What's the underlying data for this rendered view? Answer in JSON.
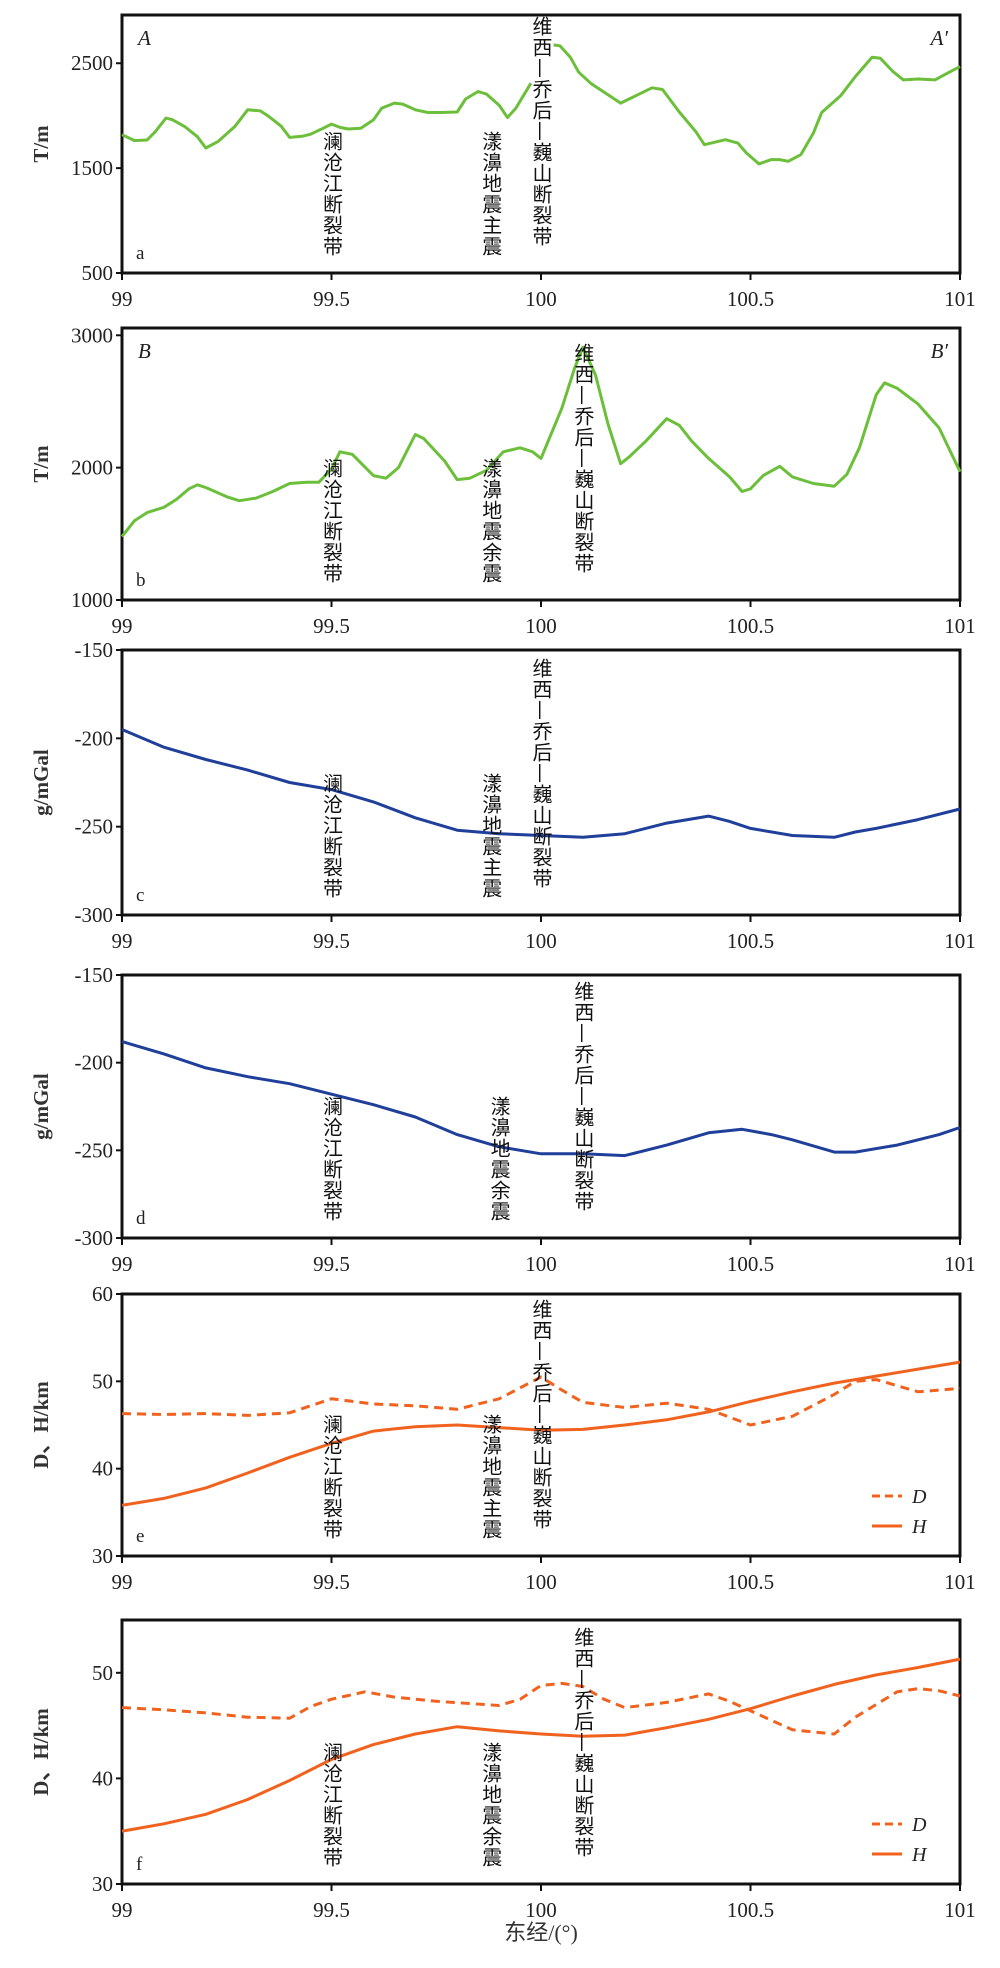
{
  "colors": {
    "T": "#6cbf3a",
    "g": "#1f3f9a",
    "DH": "#f0621e",
    "axis": "#111111"
  },
  "xlabel": "东经/(°)",
  "chart_data": [
    {
      "type": "line",
      "panel": "a",
      "ylabel": "T/m",
      "corner_left": "A",
      "corner_right": "A′",
      "xlim": [
        99,
        101
      ],
      "ylim": [
        500,
        2960
      ],
      "xticks": [
        "99",
        "99.5",
        "100",
        "100.5",
        "101"
      ],
      "yticks": [
        "500",
        "1500",
        "2500"
      ],
      "annotations": [
        {
          "x": 99.5,
          "text": "澜沧江断裂带"
        },
        {
          "x": 99.88,
          "text": "漾濞地震主震"
        },
        {
          "x": 100.0,
          "text": "维西—乔后—巍山断裂带"
        }
      ],
      "series": [
        {
          "name": "T",
          "color": "T",
          "dash": false,
          "gap_after_x": 99.976,
          "x": [
            99.0,
            99.03,
            99.06,
            99.08,
            99.105,
            99.12,
            99.15,
            99.18,
            99.2,
            99.23,
            99.27,
            99.3,
            99.33,
            99.35,
            99.38,
            99.4,
            99.43,
            99.45,
            99.48,
            99.5,
            99.52,
            99.54,
            99.57,
            99.6,
            99.62,
            99.65,
            99.67,
            99.7,
            99.73,
            99.76,
            99.8,
            99.82,
            99.85,
            99.87,
            99.9,
            99.92,
            99.94,
            99.976,
            100.03,
            100.045,
            100.07,
            100.09,
            100.12,
            100.16,
            100.19,
            100.22,
            100.265,
            100.29,
            100.33,
            100.37,
            100.39,
            100.44,
            100.47,
            100.49,
            100.52,
            100.55,
            100.57,
            100.59,
            100.62,
            100.65,
            100.67,
            100.715,
            100.75,
            100.79,
            100.81,
            100.84,
            100.865,
            100.9,
            100.94,
            100.97,
            101.0
          ],
          "y": [
            1819,
            1762,
            1768,
            1850,
            1977,
            1962,
            1895,
            1800,
            1692,
            1756,
            1900,
            2056,
            2046,
            1994,
            1900,
            1793,
            1803,
            1823,
            1880,
            1920,
            1888,
            1873,
            1880,
            1960,
            2072,
            2120,
            2110,
            2056,
            2030,
            2030,
            2035,
            2159,
            2231,
            2206,
            2100,
            1983,
            2072,
            2310,
            2675,
            2666,
            2558,
            2415,
            2304,
            2200,
            2120,
            2178,
            2266,
            2250,
            2035,
            1845,
            1723,
            1771,
            1739,
            1645,
            1540,
            1581,
            1581,
            1565,
            1628,
            1835,
            2030,
            2190,
            2373,
            2557,
            2547,
            2420,
            2341,
            2350,
            2341,
            2405,
            2468
          ]
        }
      ]
    },
    {
      "type": "line",
      "panel": "b",
      "ylabel": "T/m",
      "corner_left": "B",
      "corner_right": "B′",
      "xlim": [
        99,
        101
      ],
      "ylim": [
        1000,
        3055
      ],
      "xticks": [
        "99",
        "99.5",
        "100",
        "100.5",
        "101"
      ],
      "yticks": [
        "1000",
        "2000",
        "3000"
      ],
      "annotations": [
        {
          "x": 99.5,
          "text": "澜沧江断裂带"
        },
        {
          "x": 99.88,
          "text": "漾濞地震余震"
        },
        {
          "x": 100.1,
          "text": "维西—乔后—巍山断裂带"
        }
      ],
      "series": [
        {
          "name": "T",
          "color": "T",
          "dash": false,
          "x": [
            99.0,
            99.03,
            99.06,
            99.1,
            99.13,
            99.16,
            99.18,
            99.2,
            99.25,
            99.28,
            99.32,
            99.36,
            99.4,
            99.44,
            99.47,
            99.5,
            99.52,
            99.55,
            99.6,
            99.63,
            99.66,
            99.7,
            99.72,
            99.77,
            99.8,
            99.83,
            99.87,
            99.91,
            99.95,
            99.98,
            100.0,
            100.05,
            100.08,
            100.1,
            100.13,
            100.16,
            100.19,
            100.21,
            100.25,
            100.3,
            100.33,
            100.36,
            100.4,
            100.45,
            100.48,
            100.5,
            100.53,
            100.57,
            100.6,
            100.65,
            100.7,
            100.73,
            100.76,
            100.8,
            100.82,
            100.85,
            100.9,
            100.95,
            101.0
          ],
          "y": [
            1480,
            1600,
            1660,
            1700,
            1760,
            1840,
            1870,
            1850,
            1780,
            1750,
            1770,
            1820,
            1880,
            1890,
            1890,
            1990,
            2120,
            2100,
            1940,
            1920,
            2000,
            2250,
            2220,
            2050,
            1910,
            1920,
            1980,
            2120,
            2150,
            2120,
            2070,
            2450,
            2750,
            2910,
            2700,
            2330,
            2030,
            2080,
            2200,
            2370,
            2320,
            2200,
            2070,
            1930,
            1820,
            1840,
            1940,
            2010,
            1930,
            1880,
            1860,
            1950,
            2150,
            2550,
            2640,
            2600,
            2480,
            2300,
            1970
          ]
        }
      ]
    },
    {
      "type": "line",
      "panel": "c",
      "ylabel": "g/mGal",
      "xlim": [
        99,
        101
      ],
      "ylim": [
        -300,
        -150
      ],
      "xticks": [
        "99",
        "99.5",
        "100",
        "100.5",
        "101"
      ],
      "yticks": [
        "-300",
        "-250",
        "-200",
        "-150"
      ],
      "annotations": [
        {
          "x": 99.5,
          "text": "澜沧江断裂带"
        },
        {
          "x": 99.88,
          "text": "漾濞地震主震"
        },
        {
          "x": 100.0,
          "text": "维西—乔后—巍山断裂带"
        }
      ],
      "series": [
        {
          "name": "g",
          "color": "g",
          "dash": false,
          "x": [
            99.0,
            99.1,
            99.2,
            99.3,
            99.4,
            99.5,
            99.6,
            99.7,
            99.8,
            99.9,
            100.0,
            100.1,
            100.2,
            100.3,
            100.4,
            100.45,
            100.5,
            100.6,
            100.7,
            100.75,
            100.8,
            100.9,
            101.0
          ],
          "y": [
            -195,
            -205,
            -212,
            -218,
            -225,
            -229,
            -236,
            -245,
            -252,
            -254,
            -255,
            -256,
            -254,
            -248,
            -244,
            -247,
            -251,
            -255,
            -256,
            -253,
            -251,
            -246,
            -240
          ]
        }
      ]
    },
    {
      "type": "line",
      "panel": "d",
      "ylabel": "g/mGal",
      "xlim": [
        99,
        101
      ],
      "ylim": [
        -300,
        -150
      ],
      "xticks": [
        "99",
        "99.5",
        "100",
        "100.5",
        "101"
      ],
      "yticks": [
        "-300",
        "-250",
        "-200",
        "-150"
      ],
      "annotations": [
        {
          "x": 99.5,
          "text": "澜沧江断裂带"
        },
        {
          "x": 99.9,
          "text": "漾濞地震余震"
        },
        {
          "x": 100.1,
          "text": "维西—乔后—巍山断裂带"
        }
      ],
      "series": [
        {
          "name": "g",
          "color": "g",
          "dash": false,
          "x": [
            99.0,
            99.1,
            99.2,
            99.3,
            99.4,
            99.5,
            99.6,
            99.7,
            99.8,
            99.9,
            100.0,
            100.1,
            100.2,
            100.3,
            100.4,
            100.48,
            100.55,
            100.6,
            100.7,
            100.75,
            100.85,
            100.95,
            101.0
          ],
          "y": [
            -188,
            -195,
            -203,
            -208,
            -212,
            -218,
            -224,
            -231,
            -241,
            -248,
            -252,
            -252,
            -253,
            -247,
            -240,
            -238,
            -241,
            -244,
            -251,
            -251,
            -247,
            -241,
            -237
          ]
        }
      ]
    },
    {
      "type": "line",
      "panel": "e",
      "ylabel": "D、H/km",
      "xlim": [
        99,
        101
      ],
      "ylim": [
        30,
        60
      ],
      "xticks": [
        "99",
        "99.5",
        "100",
        "100.5",
        "101"
      ],
      "yticks": [
        "30",
        "40",
        "50",
        "60"
      ],
      "annotations": [
        {
          "x": 99.5,
          "text": "澜沧江断裂带"
        },
        {
          "x": 99.88,
          "text": "漾濞地震主震"
        },
        {
          "x": 100.0,
          "text": "维西—乔后—巍山断裂带"
        }
      ],
      "legend": "bottom-right",
      "series": [
        {
          "name": "D",
          "color": "DH",
          "dash": true,
          "x": [
            99.0,
            99.1,
            99.2,
            99.3,
            99.4,
            99.5,
            99.6,
            99.7,
            99.8,
            99.9,
            100.0,
            100.05,
            100.1,
            100.2,
            100.3,
            100.4,
            100.5,
            100.6,
            100.7,
            100.75,
            100.8,
            100.9,
            101.0
          ],
          "y": [
            46.3,
            46.2,
            46.3,
            46.1,
            46.4,
            48.0,
            47.4,
            47.2,
            46.8,
            48.0,
            50.5,
            49.0,
            47.6,
            47.0,
            47.5,
            46.8,
            45.0,
            46.0,
            48.5,
            50.0,
            50.2,
            48.8,
            49.2
          ]
        },
        {
          "name": "H",
          "color": "DH",
          "dash": false,
          "x": [
            99.0,
            99.1,
            99.2,
            99.3,
            99.4,
            99.5,
            99.6,
            99.7,
            99.8,
            99.9,
            100.0,
            100.1,
            100.2,
            100.3,
            100.4,
            100.5,
            100.6,
            100.7,
            100.8,
            100.9,
            101.0
          ],
          "y": [
            35.8,
            36.6,
            37.8,
            39.5,
            41.3,
            42.9,
            44.3,
            44.8,
            45.0,
            44.7,
            44.4,
            44.5,
            45.0,
            45.6,
            46.5,
            47.7,
            48.8,
            49.8,
            50.6,
            51.4,
            52.2
          ]
        }
      ]
    },
    {
      "type": "line",
      "panel": "f",
      "ylabel": "D、H/km",
      "xlim": [
        99,
        101
      ],
      "ylim": [
        30,
        55
      ],
      "xticks": [
        "99",
        "99.5",
        "100",
        "100.5",
        "101"
      ],
      "yticks": [
        "30",
        "40",
        "50"
      ],
      "annotations": [
        {
          "x": 99.5,
          "text": "澜沧江断裂带"
        },
        {
          "x": 99.88,
          "text": "漾濞地震余震"
        },
        {
          "x": 100.1,
          "text": "维西—乔后—巍山断裂带"
        }
      ],
      "legend": "bottom-right",
      "series": [
        {
          "name": "D",
          "color": "DH",
          "dash": true,
          "x": [
            99.0,
            99.1,
            99.2,
            99.3,
            99.4,
            99.45,
            99.5,
            99.58,
            99.65,
            99.75,
            99.9,
            99.95,
            100.0,
            100.05,
            100.1,
            100.15,
            100.2,
            100.3,
            100.4,
            100.45,
            100.55,
            100.6,
            100.7,
            100.75,
            100.85,
            100.9,
            100.95,
            101.0
          ],
          "y": [
            46.7,
            46.5,
            46.2,
            45.8,
            45.7,
            46.8,
            47.5,
            48.2,
            47.7,
            47.3,
            46.9,
            47.5,
            48.8,
            49.0,
            48.7,
            47.5,
            46.7,
            47.2,
            48.0,
            47.3,
            45.5,
            44.6,
            44.2,
            45.8,
            48.2,
            48.5,
            48.3,
            47.8
          ]
        },
        {
          "name": "H",
          "color": "DH",
          "dash": false,
          "x": [
            99.0,
            99.1,
            99.2,
            99.3,
            99.4,
            99.5,
            99.6,
            99.7,
            99.8,
            99.9,
            100.0,
            100.1,
            100.2,
            100.3,
            100.4,
            100.5,
            100.6,
            100.7,
            100.8,
            100.9,
            101.0
          ],
          "y": [
            35.0,
            35.7,
            36.6,
            38.0,
            39.8,
            41.8,
            43.2,
            44.2,
            44.9,
            44.5,
            44.2,
            44.0,
            44.1,
            44.8,
            45.6,
            46.6,
            47.8,
            48.9,
            49.8,
            50.5,
            51.3
          ]
        }
      ]
    }
  ]
}
